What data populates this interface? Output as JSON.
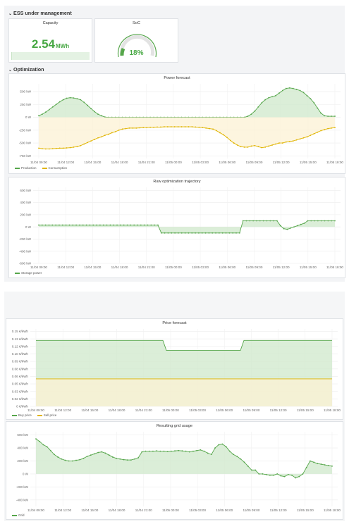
{
  "section_ess": "ESS under management",
  "section_opt": "Optimization",
  "capacity": {
    "title": "Capacity",
    "value": "2.54",
    "unit": "MWh"
  },
  "soc": {
    "title": "SoC",
    "value": "18%",
    "fraction": 0.18
  },
  "colors": {
    "green": "#56a64b",
    "yellow": "#e0b400",
    "fill_green": "#cfe8cb",
    "fill_yellow": "#fcf1d4"
  },
  "x_ticks": [
    "11/04 09:00",
    "11/04 12:00",
    "11/04 15:00",
    "11/04 18:00",
    "11/04 21:00",
    "11/05 00:00",
    "11/05 03:00",
    "11/05 06:00",
    "11/05 09:00",
    "11/05 12:00",
    "11/05 15:00",
    "11/05 18:00"
  ],
  "chart_data": [
    {
      "type": "line",
      "title": "Power forecast",
      "ylim": [
        -800,
        650
      ],
      "y_ticks": [
        "500 kW",
        "250 kW",
        "0 W",
        "-250 kW",
        "-500 kW",
        "-750 kW"
      ],
      "y_tick_values": [
        500,
        250,
        0,
        -250,
        -500,
        -750
      ],
      "series": [
        {
          "name": "Production",
          "values": [
            30,
            60,
            100,
            150,
            200,
            250,
            300,
            340,
            370,
            380,
            375,
            360,
            340,
            290,
            230,
            170,
            110,
            60,
            30,
            5,
            0,
            0,
            0,
            0,
            0,
            0,
            0,
            0,
            0,
            0,
            0,
            0,
            0,
            0,
            0,
            0,
            0,
            0,
            0,
            0,
            0,
            0,
            0,
            0,
            0,
            0,
            0,
            0,
            0,
            0,
            0,
            0,
            0,
            0,
            0,
            0,
            0,
            0,
            0,
            0,
            20,
            60,
            120,
            200,
            280,
            340,
            380,
            400,
            420,
            470,
            520,
            560,
            570,
            560,
            540,
            520,
            480,
            420,
            360,
            280,
            180,
            80,
            30,
            20,
            20,
            20
          ]
        },
        {
          "name": "Consumption",
          "values": [
            -600,
            -610,
            -615,
            -615,
            -610,
            -605,
            -600,
            -600,
            -595,
            -590,
            -580,
            -570,
            -550,
            -520,
            -490,
            -460,
            -430,
            -400,
            -380,
            -350,
            -330,
            -300,
            -280,
            -250,
            -230,
            -220,
            -210,
            -210,
            -210,
            -205,
            -200,
            -200,
            -195,
            -195,
            -190,
            -190,
            -185,
            -185,
            -185,
            -185,
            -185,
            -185,
            -185,
            -185,
            -185,
            -190,
            -195,
            -200,
            -210,
            -220,
            -230,
            -260,
            -300,
            -340,
            -390,
            -450,
            -500,
            -540,
            -570,
            -580,
            -580,
            -560,
            -550,
            -570,
            -590,
            -580,
            -560,
            -540,
            -520,
            -500,
            -500,
            -480,
            -470,
            -460,
            -440,
            -420,
            -400,
            -380,
            -350,
            -320,
            -290,
            -260,
            -240,
            -220,
            -210,
            -200
          ]
        }
      ]
    },
    {
      "type": "line",
      "title": "Raw optimization trajectory",
      "ylim": [
        -600,
        650
      ],
      "y_ticks": [
        "600 kW",
        "400 kW",
        "200 kW",
        "0 W",
        "-200 kW",
        "-400 kW",
        "-600 kW"
      ],
      "y_tick_values": [
        600,
        400,
        200,
        0,
        -200,
        -400,
        -600
      ],
      "series": [
        {
          "name": "Storage power",
          "values": [
            30,
            30,
            30,
            30,
            30,
            30,
            30,
            30,
            30,
            30,
            30,
            30,
            30,
            30,
            30,
            30,
            30,
            30,
            30,
            30,
            30,
            30,
            30,
            30,
            30,
            30,
            30,
            30,
            30,
            30,
            30,
            30,
            30,
            30,
            30,
            30,
            -100,
            -100,
            -100,
            -100,
            -100,
            -100,
            -100,
            -100,
            -100,
            -100,
            -100,
            -100,
            -100,
            -100,
            -100,
            -100,
            -100,
            -100,
            -100,
            -100,
            -100,
            -100,
            -100,
            -100,
            100,
            100,
            100,
            100,
            100,
            100,
            100,
            100,
            100,
            100,
            100,
            20,
            -30,
            -40,
            -20,
            0,
            20,
            40,
            60,
            100,
            100,
            100,
            100,
            100,
            100,
            100,
            100,
            100
          ]
        }
      ]
    },
    {
      "type": "line",
      "title": "Price forecast",
      "ylim": [
        0,
        0.155
      ],
      "y_ticks": [
        "0.15 €/kWh",
        "0.13 €/kWh",
        "0.12 €/kWh",
        "0.10 €/kWh",
        "0.09 €/kWh",
        "0.08 €/kWh",
        "0.06 €/kWh",
        "0.05 €/kWh",
        "0.03 €/kWh",
        "0.02 €/kWh",
        "0 €/kWh"
      ],
      "y_tick_values": [
        0.15,
        0.135,
        0.12,
        0.105,
        0.09,
        0.075,
        0.06,
        0.045,
        0.03,
        0.015,
        0
      ],
      "series": [
        {
          "name": "Buy price",
          "values": [
            0.132,
            0.132,
            0.132,
            0.132,
            0.132,
            0.132,
            0.132,
            0.132,
            0.132,
            0.132,
            0.132,
            0.132,
            0.132,
            0.132,
            0.132,
            0.132,
            0.132,
            0.132,
            0.132,
            0.132,
            0.132,
            0.132,
            0.132,
            0.132,
            0.132,
            0.132,
            0.132,
            0.132,
            0.132,
            0.132,
            0.132,
            0.132,
            0.132,
            0.132,
            0.132,
            0.132,
            0.132,
            0.112,
            0.112,
            0.112,
            0.112,
            0.112,
            0.112,
            0.112,
            0.112,
            0.112,
            0.112,
            0.112,
            0.112,
            0.112,
            0.112,
            0.112,
            0.112,
            0.112,
            0.112,
            0.112,
            0.112,
            0.112,
            0.112,
            0.132,
            0.132,
            0.132,
            0.132,
            0.132,
            0.132,
            0.132,
            0.132,
            0.132,
            0.132,
            0.132,
            0.132,
            0.132,
            0.132,
            0.132,
            0.132,
            0.132,
            0.132,
            0.132,
            0.132,
            0.132,
            0.132,
            0.132,
            0.132,
            0.132,
            0.132
          ]
        },
        {
          "name": "Sell price",
          "values": [
            0.055,
            0.055,
            0.055,
            0.055,
            0.055,
            0.055,
            0.055,
            0.055,
            0.055,
            0.055,
            0.055,
            0.055,
            0.055,
            0.055,
            0.055,
            0.055,
            0.055,
            0.055,
            0.055,
            0.055,
            0.055,
            0.055,
            0.055,
            0.055,
            0.055,
            0.055,
            0.055,
            0.055,
            0.055,
            0.055,
            0.055,
            0.055,
            0.055,
            0.055,
            0.055,
            0.055,
            0.055,
            0.055,
            0.055,
            0.055,
            0.055,
            0.055,
            0.055,
            0.055,
            0.055,
            0.055,
            0.055,
            0.055,
            0.055,
            0.055,
            0.055,
            0.055,
            0.055,
            0.055,
            0.055,
            0.055,
            0.055,
            0.055,
            0.055,
            0.055,
            0.055,
            0.055,
            0.055,
            0.055,
            0.055,
            0.055,
            0.055,
            0.055,
            0.055,
            0.055,
            0.055,
            0.055,
            0.055,
            0.055,
            0.055,
            0.055,
            0.055,
            0.055,
            0.055,
            0.055,
            0.055,
            0.055,
            0.055,
            0.055,
            0.055
          ]
        }
      ]
    },
    {
      "type": "line",
      "title": "Resulting grid usage",
      "ylim": [
        -500,
        650
      ],
      "y_ticks": [
        "600 kW",
        "400 kW",
        "200 kW",
        "0 W",
        "-200 kW",
        "-400 kW"
      ],
      "y_tick_values": [
        600,
        400,
        200,
        0,
        -200,
        -400
      ],
      "series": [
        {
          "name": "Grid",
          "values": [
            540,
            500,
            450,
            420,
            360,
            300,
            260,
            230,
            210,
            200,
            200,
            210,
            220,
            240,
            270,
            290,
            310,
            330,
            340,
            320,
            290,
            260,
            240,
            230,
            220,
            215,
            215,
            230,
            250,
            340,
            350,
            350,
            350,
            355,
            350,
            350,
            345,
            350,
            355,
            360,
            355,
            350,
            340,
            350,
            360,
            370,
            350,
            320,
            300,
            400,
            450,
            460,
            420,
            350,
            300,
            270,
            230,
            180,
            120,
            60,
            60,
            0,
            0,
            -10,
            -20,
            -20,
            0,
            -30,
            -40,
            -10,
            -20,
            -60,
            -40,
            0,
            100,
            200,
            180,
            160,
            150,
            140,
            130,
            120
          ]
        }
      ]
    }
  ]
}
